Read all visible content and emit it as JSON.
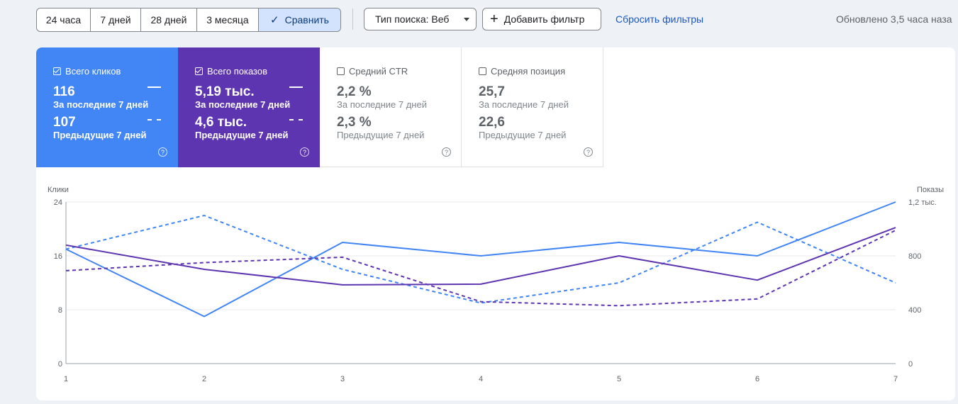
{
  "toolbar": {
    "date_chips": [
      "24 часа",
      "7 дней",
      "28 дней",
      "3 месяца"
    ],
    "compare_label": "Сравнить",
    "search_type_label": "Тип поиска: Веб",
    "add_filter_label": "Добавить фильтр",
    "reset_label": "Сбросить фильтры",
    "updated_label": "Обновлено 3,5 часа наза"
  },
  "cards": [
    {
      "title": "Всего кликов",
      "value_current": "116",
      "label_current": "За последние 7 дней",
      "value_previous": "107",
      "label_previous": "Предыдущие 7 дней",
      "checked": true,
      "color": "#4285f4"
    },
    {
      "title": "Всего показов",
      "value_current": "5,19 тыс.",
      "label_current": "За последние 7 дней",
      "value_previous": "4,6 тыс.",
      "label_previous": "Предыдущие 7 дней",
      "checked": true,
      "color": "#5e35b1"
    },
    {
      "title": "Средний CTR",
      "value_current": "2,2 %",
      "label_current": "За последние 7 дней",
      "value_previous": "2,3 %",
      "label_previous": "Предыдущие 7 дней",
      "checked": false
    },
    {
      "title": "Средняя позиция",
      "value_current": "25,7",
      "label_current": "За последние 7 дней",
      "value_previous": "22,6",
      "label_previous": "Предыдущие 7 дней",
      "checked": false
    }
  ],
  "chart_data": {
    "type": "line",
    "x": [
      1,
      2,
      3,
      4,
      5,
      6,
      7
    ],
    "ylabel_left": "Клики",
    "ylabel_right": "Показы",
    "yticks_left": [
      "0",
      "8",
      "16",
      "24"
    ],
    "yticks_right": [
      "0",
      "400",
      "800",
      "1,2 тыс."
    ],
    "ylim_left": [
      0,
      24
    ],
    "ylim_right": [
      0,
      1200
    ],
    "grid": true,
    "series": [
      {
        "axis": "left",
        "style": "solid",
        "color": "#4285f4",
        "values": [
          17,
          7,
          18,
          16,
          18,
          16,
          24
        ]
      },
      {
        "axis": "left",
        "style": "dashed",
        "color": "#4285f4",
        "values": [
          17,
          22,
          14,
          9,
          12,
          21,
          12
        ]
      },
      {
        "axis": "right",
        "style": "solid",
        "color": "#5e35b1",
        "values": [
          880,
          700,
          585,
          590,
          800,
          620,
          1010
        ]
      },
      {
        "axis": "right",
        "style": "dashed",
        "color": "#5e35b1",
        "values": [
          690,
          750,
          790,
          460,
          430,
          480,
          990
        ]
      }
    ]
  }
}
